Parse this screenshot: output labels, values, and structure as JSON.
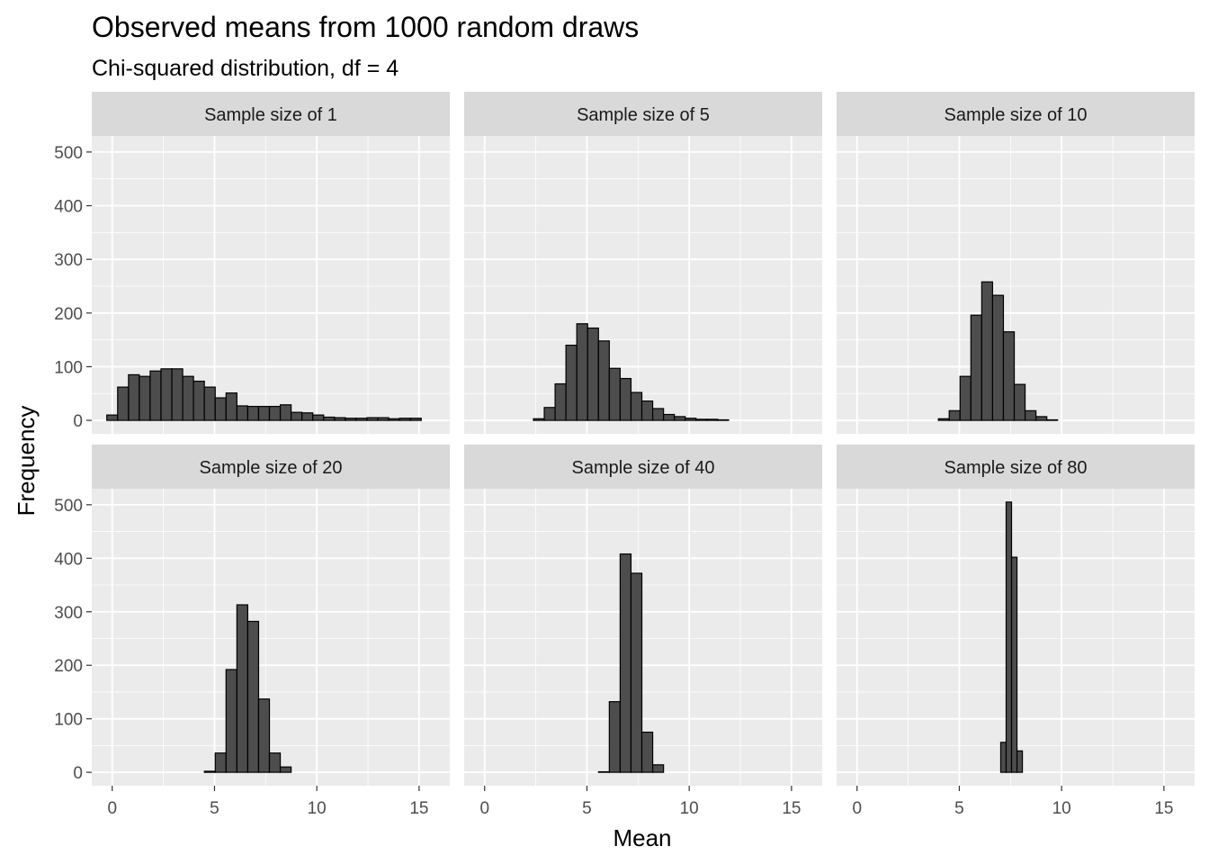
{
  "chart_data": {
    "type": "bar",
    "title": "Observed means from  1000  random draws",
    "subtitle": "Chi-squared distribution, df = 4",
    "xlabel": "Mean",
    "ylabel": "Frequency",
    "xlim": [
      -1,
      16.5
    ],
    "ylim": [
      -25,
      530
    ],
    "x_ticks": [
      0,
      5,
      10,
      15
    ],
    "y_ticks": [
      0,
      100,
      200,
      300,
      400,
      500
    ],
    "grid": true,
    "bin_width": 0.53,
    "bin_start": -0.265,
    "panels": [
      {
        "label": "Sample size of  1",
        "counts": [
          10,
          62,
          85,
          82,
          92,
          96,
          96,
          82,
          73,
          62,
          42,
          51,
          27,
          26,
          26,
          26,
          29,
          15,
          14,
          10,
          6,
          5,
          4,
          4,
          5,
          5,
          3,
          4,
          4
        ]
      },
      {
        "label": "Sample size of  5",
        "counts": [
          0,
          0,
          0,
          0,
          0,
          3,
          24,
          68,
          140,
          180,
          172,
          148,
          97,
          78,
          52,
          36,
          22,
          11,
          7,
          4,
          2,
          2,
          1,
          0,
          0,
          0,
          0,
          0,
          0,
          0,
          0,
          0,
          0,
          0,
          0
        ]
      },
      {
        "label": "Sample size of  10",
        "counts": [
          0,
          0,
          0,
          0,
          0,
          0,
          0,
          0,
          3,
          18,
          82,
          196,
          258,
          233,
          165,
          67,
          18,
          7,
          1,
          0,
          0,
          0,
          0,
          0,
          0,
          0,
          0,
          0,
          0,
          0,
          0,
          0,
          0,
          0,
          0
        ]
      },
      {
        "label": "Sample size of  20",
        "counts": [
          0,
          0,
          0,
          0,
          0,
          0,
          0,
          0,
          0,
          2,
          36,
          192,
          313,
          282,
          137,
          36,
          10,
          0,
          0,
          0,
          0,
          0,
          0,
          0,
          0,
          0,
          0,
          0,
          0,
          0,
          0,
          0,
          0,
          0,
          0
        ]
      },
      {
        "label": "Sample size of  40",
        "counts": [
          0,
          0,
          0,
          0,
          0,
          0,
          0,
          0,
          0,
          0,
          0,
          1,
          132,
          408,
          372,
          75,
          14,
          0,
          0,
          0,
          0,
          0,
          0,
          0,
          0,
          0,
          0,
          0,
          0,
          0,
          0,
          0,
          0,
          0,
          0
        ]
      },
      {
        "label": "Sample size of  80",
        "counts": [
          0,
          0,
          0,
          0,
          0,
          0,
          0,
          0,
          0,
          0,
          0,
          0,
          0,
          0,
          0,
          0,
          0,
          0,
          0,
          0,
          0,
          0,
          0,
          0,
          0,
          0,
          0,
          56,
          505,
          402,
          40,
          0,
          0,
          0,
          0,
          0,
          0,
          0,
          0,
          0,
          0,
          0,
          0,
          0,
          0,
          0,
          0,
          0,
          0,
          0,
          0,
          0,
          0,
          0,
          0,
          0,
          0,
          0,
          0,
          0,
          0,
          0,
          0,
          0,
          0,
          0,
          0,
          0,
          0,
          0
        ],
        "bin_width": 0.265,
        "bin_start": -0.1325
      }
    ],
    "colors": {
      "bar_fill": "#4d4d4d",
      "bar_outline": "#000000",
      "panel_background": "#ebebeb",
      "strip_background": "#d9d9d9",
      "grid": "#ffffff"
    }
  }
}
